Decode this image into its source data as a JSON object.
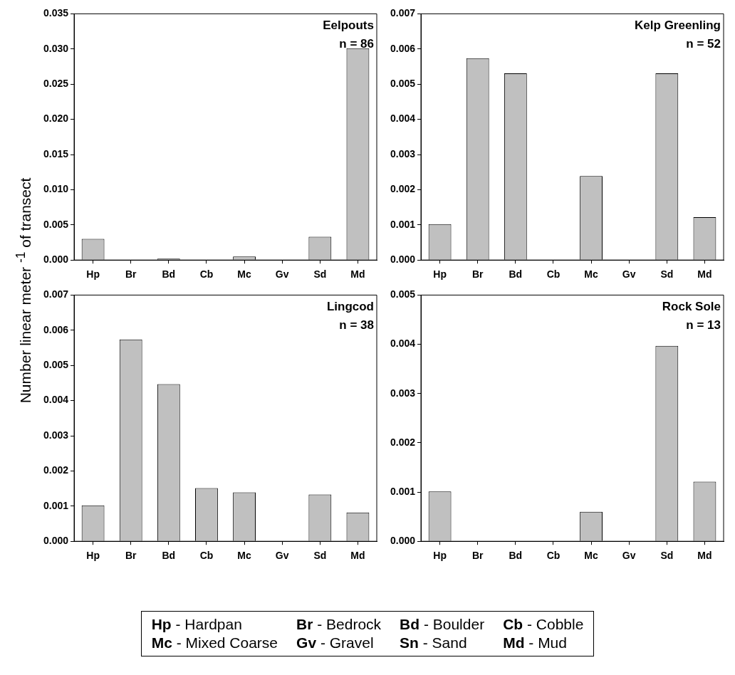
{
  "chart_data": [
    {
      "type": "bar",
      "ylabel": "Number linear meter $^{-1}$ of transect",
      "annotations": [
        "Eelpouts",
        "n = 86"
      ],
      "categories": [
        "Hp",
        "Br",
        "Bd",
        "Cb",
        "Mc",
        "Gv",
        "Sd",
        "Md"
      ],
      "color": "#c0c0c0",
      "values": [
        0.003,
        0,
        0.0002,
        0,
        0.0005,
        0,
        0.0033,
        0.0301
      ],
      "ylim": [
        0,
        0.035
      ],
      "yticks": [
        {
          "value": 0,
          "label": "0.000"
        },
        0.005,
        {
          "value": 0.01,
          "label": "0.010"
        },
        0.015,
        {
          "value": 0.02,
          "label": "0.020"
        },
        0.025,
        {
          "value": 0.03,
          "label": "0.030"
        },
        0.035
      ],
      "grid": false,
      "legend": false
    },
    {
      "type": "bar",
      "annotations": [
        "Kelp Greenling",
        "n = 52"
      ],
      "categories": [
        "Hp",
        "Br",
        "Bd",
        "Cb",
        "Mc",
        "Gv",
        "Sd",
        "Md"
      ],
      "color": "#c0c0c0",
      "values": [
        0.00102,
        0.00574,
        0.00531,
        0,
        0.00239,
        0,
        0.00531,
        0.00122
      ],
      "ylim": [
        0,
        0.007
      ],
      "yticks": [
        {
          "value": 0,
          "label": "0.000"
        },
        0.001,
        0.002,
        0.003,
        0.004,
        0.005,
        0.006,
        0.007
      ],
      "grid": false,
      "legend": false
    },
    {
      "type": "bar",
      "annotations": [
        "Lingcod",
        "n = 38"
      ],
      "categories": [
        "Hp",
        "Br",
        "Bd",
        "Cb",
        "Mc",
        "Gv",
        "Sd",
        "Md"
      ],
      "color": "#c0c0c0",
      "values": [
        0.00102,
        0.00574,
        0.00447,
        0.00151,
        0.00139,
        0,
        0.00133,
        0.00082
      ],
      "ylim": [
        0,
        0.007
      ],
      "yticks": [
        {
          "value": 0,
          "label": "0.000"
        },
        0.001,
        0.002,
        0.003,
        0.004,
        0.005,
        0.006,
        0.007
      ],
      "grid": false,
      "legend": false
    },
    {
      "type": "bar",
      "annotations": [
        "Rock Sole",
        "n = 13"
      ],
      "categories": [
        "Hp",
        "Br",
        "Bd",
        "Cb",
        "Mc",
        "Gv",
        "Sd",
        "Md"
      ],
      "color": "#c0c0c0",
      "values": [
        0.00101,
        0,
        0,
        0,
        0.0006,
        0,
        0.00397,
        0.00121
      ],
      "ylim": [
        0,
        0.005
      ],
      "yticks": [
        {
          "value": 0,
          "label": "0.000"
        },
        0.001,
        0.002,
        0.003,
        0.004,
        0.005
      ],
      "grid": false,
      "legend": false
    },
    {
      "type": "other",
      "annotations": [
        "Hp - Hardpan",
        "Br - Bedrock",
        "Bd - Boulder",
        "Cb - Cobble",
        "Mc - Mixed Coarse",
        "Gv - Gravel",
        "Sn - Sand",
        "Md - Mud"
      ]
    }
  ]
}
